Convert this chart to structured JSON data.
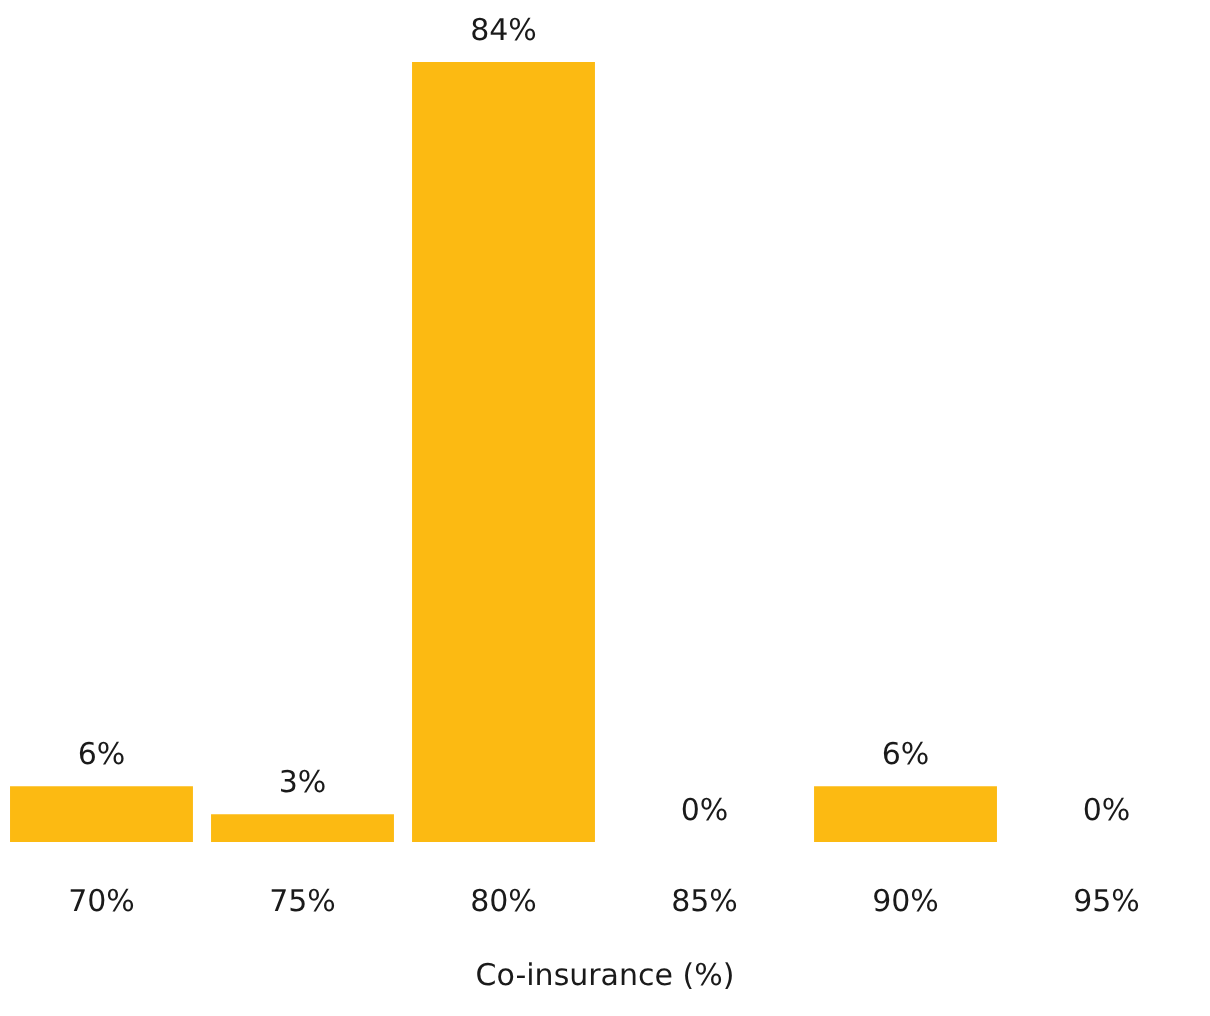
{
  "chart_data": {
    "type": "bar",
    "xlabel": "Co-insurance (%)",
    "categories": [
      "70%",
      "75%",
      "80%",
      "85%",
      "90%",
      "95%"
    ],
    "values": [
      6,
      3,
      84,
      0,
      6,
      0
    ],
    "value_labels": [
      "6%",
      "3%",
      "84%",
      "0%",
      "6%",
      "0%"
    ],
    "color": "#fcba12"
  }
}
